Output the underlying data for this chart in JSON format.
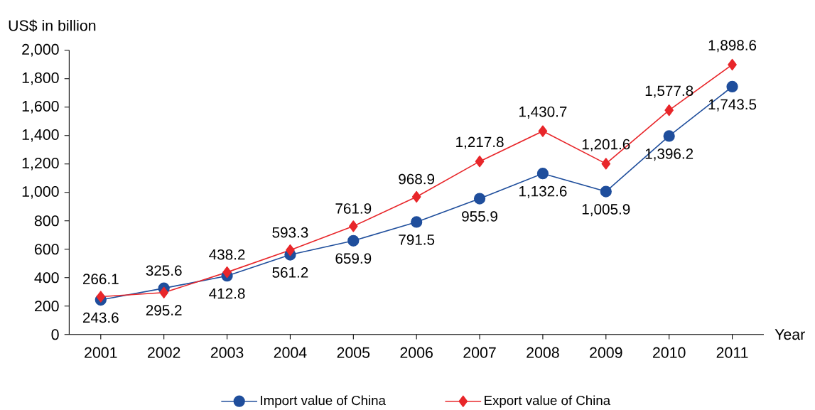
{
  "chart_data": {
    "type": "line",
    "xlabel": "Year",
    "ylabel": "US$ in billion",
    "categories": [
      "2001",
      "2002",
      "2003",
      "2004",
      "2005",
      "2006",
      "2007",
      "2008",
      "2009",
      "2010",
      "2011"
    ],
    "series": [
      {
        "name": "Import value of China",
        "color": "#1f4e9c",
        "marker": "circle",
        "values": [
          243.6,
          325.6,
          412.8,
          561.2,
          659.9,
          791.5,
          955.9,
          1132.6,
          1005.9,
          1396.2,
          1743.5
        ],
        "value_labels": [
          "243.6",
          "325.6",
          "412.8",
          "561.2",
          "659.9",
          "791.5",
          "955.9",
          "1,132.6",
          "1,005.9",
          "1,396.2",
          "1,743.5"
        ]
      },
      {
        "name": "Export value of China",
        "color": "#e8262a",
        "marker": "diamond",
        "values": [
          266.1,
          295.2,
          438.2,
          593.3,
          761.9,
          968.9,
          1217.8,
          1430.7,
          1201.6,
          1577.8,
          1898.6
        ],
        "value_labels": [
          "266.1",
          "295.2",
          "438.2",
          "593.3",
          "761.9",
          "968.9",
          "1,217.8",
          "1,430.7",
          "1,201.6",
          "1,577.8",
          "1,898.6"
        ]
      }
    ],
    "ylim": [
      0,
      2000
    ],
    "yticks": [
      0,
      200,
      400,
      600,
      800,
      {
        "value": 1000,
        "label": "1,000"
      },
      {
        "value": 1200,
        "label": "1,200"
      },
      {
        "value": 1400,
        "label": "1,400"
      },
      {
        "value": 1600,
        "label": "1,600"
      },
      {
        "value": 1800,
        "label": "1,800"
      },
      {
        "value": 2000,
        "label": "2,000"
      }
    ],
    "legend": "bottom",
    "grid": false,
    "line_style": "solid"
  }
}
